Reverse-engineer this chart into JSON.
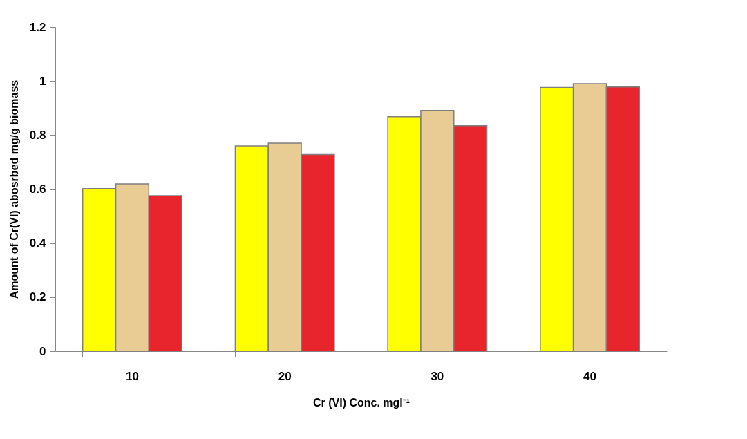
{
  "chart_data": {
    "type": "bar",
    "xlabel": "Cr (VI) Conc. mgl⁻¹",
    "ylabel": "Amount of Cr(VI) abosrbed mg/g biomass",
    "categories": [
      "10",
      "20",
      "30",
      "40"
    ],
    "series": [
      {
        "color": "#ffff00",
        "values": [
          0.602,
          0.76,
          0.868,
          0.976
        ]
      },
      {
        "color": "#e8cc94",
        "values": [
          0.619,
          0.77,
          0.891,
          0.99
        ]
      },
      {
        "color": "#e8242c",
        "values": [
          0.576,
          0.728,
          0.835,
          0.978
        ]
      }
    ],
    "ylim": [
      0,
      1.2
    ],
    "yticks": [
      0,
      0.2,
      0.4,
      0.6,
      0.8,
      1,
      1.2
    ],
    "grid": false,
    "legend": false
  }
}
